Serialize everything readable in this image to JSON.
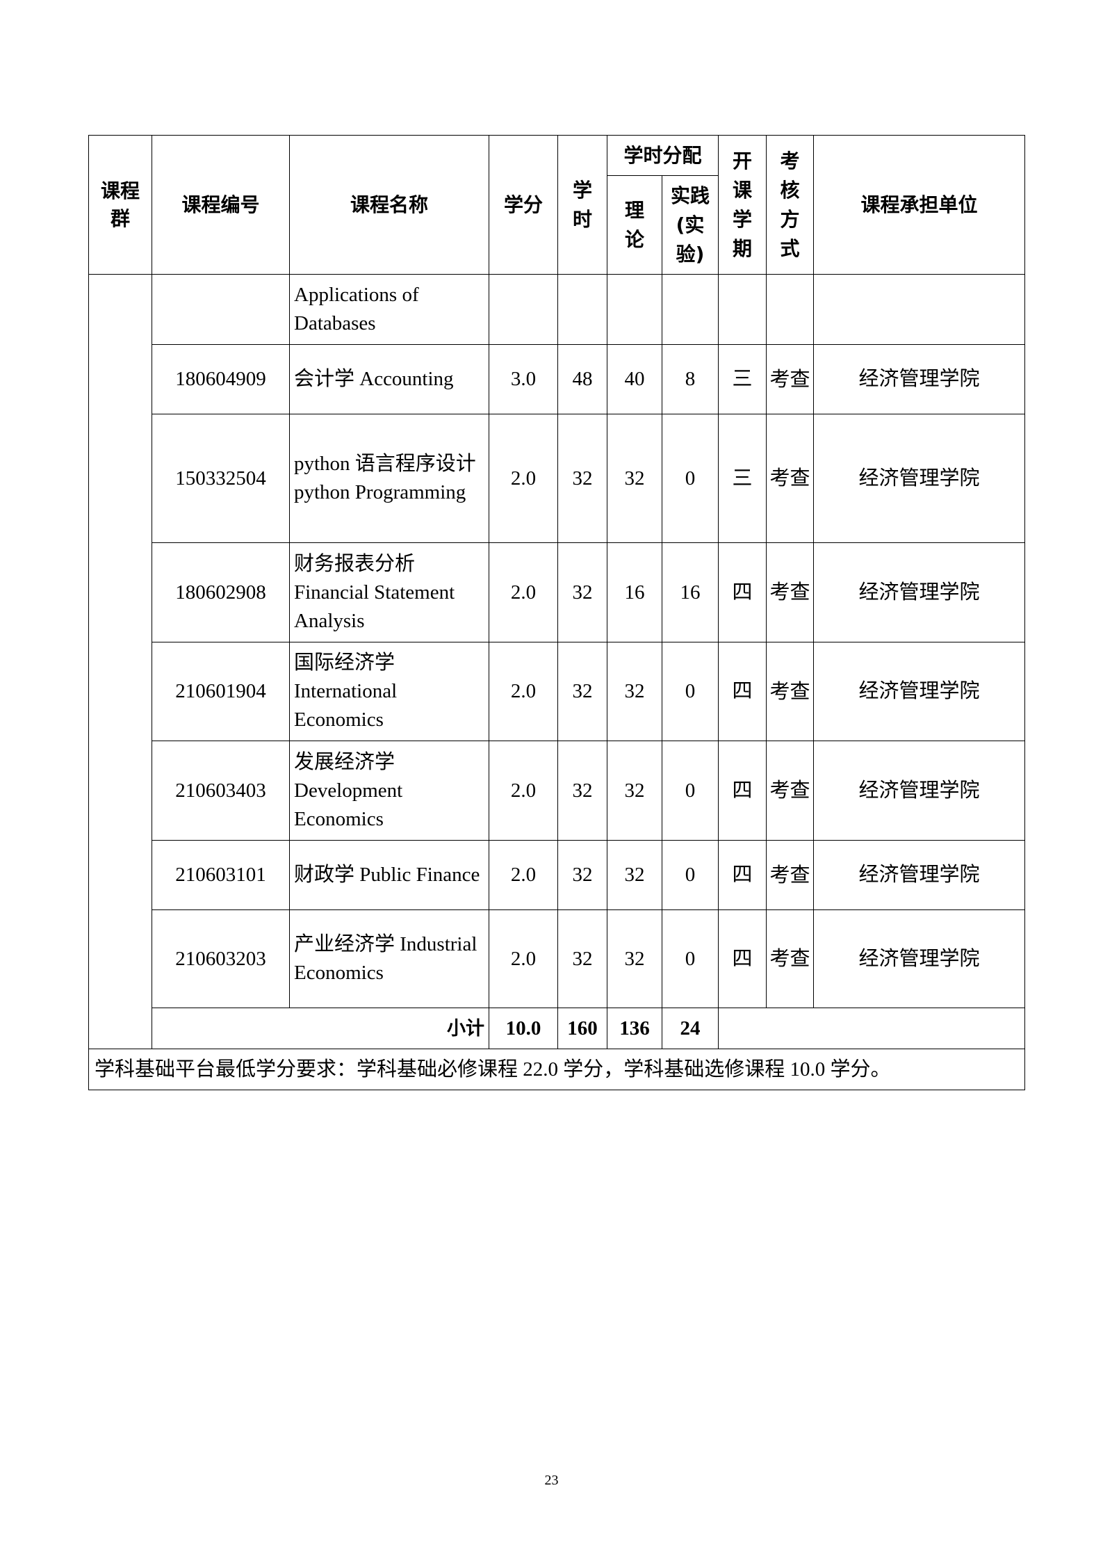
{
  "headers": {
    "group": "课程群",
    "code": "课程编号",
    "name": "课程名称",
    "credit": "学分",
    "hours": "学时",
    "hours_alloc": "学时分配",
    "theory": "理论",
    "practice": "实践(实验)",
    "semester": "开课学期",
    "assessment": "考核方式",
    "unit": "课程承担单位"
  },
  "rows": [
    {
      "code": "",
      "name": "Applications of Databases",
      "credit": "",
      "hours": "",
      "theory": "",
      "practice": "",
      "semester": "",
      "assessment": "",
      "unit": ""
    },
    {
      "code": "180604909",
      "name": "会计学 Accounting",
      "credit": "3.0",
      "hours": "48",
      "theory": "40",
      "practice": "8",
      "semester": "三",
      "assessment": "考查",
      "unit": "经济管理学院"
    },
    {
      "code": "150332504",
      "name": "python 语言程序设计 python Programming",
      "credit": "2.0",
      "hours": "32",
      "theory": "32",
      "practice": "0",
      "semester": "三",
      "assessment": "考查",
      "unit": "经济管理学院"
    },
    {
      "code": "180602908",
      "name": "财务报表分析 Financial Statement Analysis",
      "credit": "2.0",
      "hours": "32",
      "theory": "16",
      "practice": "16",
      "semester": "四",
      "assessment": "考查",
      "unit": "经济管理学院"
    },
    {
      "code": "210601904",
      "name": "国际经济学 International Economics",
      "credit": "2.0",
      "hours": "32",
      "theory": "32",
      "practice": "0",
      "semester": "四",
      "assessment": "考查",
      "unit": "经济管理学院"
    },
    {
      "code": "210603403",
      "name": "发展经济学 Development Economics",
      "credit": "2.0",
      "hours": "32",
      "theory": "32",
      "practice": "0",
      "semester": "四",
      "assessment": "考查",
      "unit": "经济管理学院"
    },
    {
      "code": "210603101",
      "name": "财政学 Public Finance",
      "credit": "2.0",
      "hours": "32",
      "theory": "32",
      "practice": "0",
      "semester": "四",
      "assessment": "考查",
      "unit": "经济管理学院"
    },
    {
      "code": "210603203",
      "name": "产业经济学 Industrial Economics",
      "credit": "2.0",
      "hours": "32",
      "theory": "32",
      "practice": "0",
      "semester": "四",
      "assessment": "考查",
      "unit": "经济管理学院"
    }
  ],
  "subtotal": {
    "label": "小计",
    "credit": "10.0",
    "hours": "160",
    "theory": "136",
    "practice": "24"
  },
  "requirement": "学科基础平台最低学分要求：学科基础必修课程 22.0 学分，学科基础选修课程 10.0 学分。",
  "page_number": "23"
}
